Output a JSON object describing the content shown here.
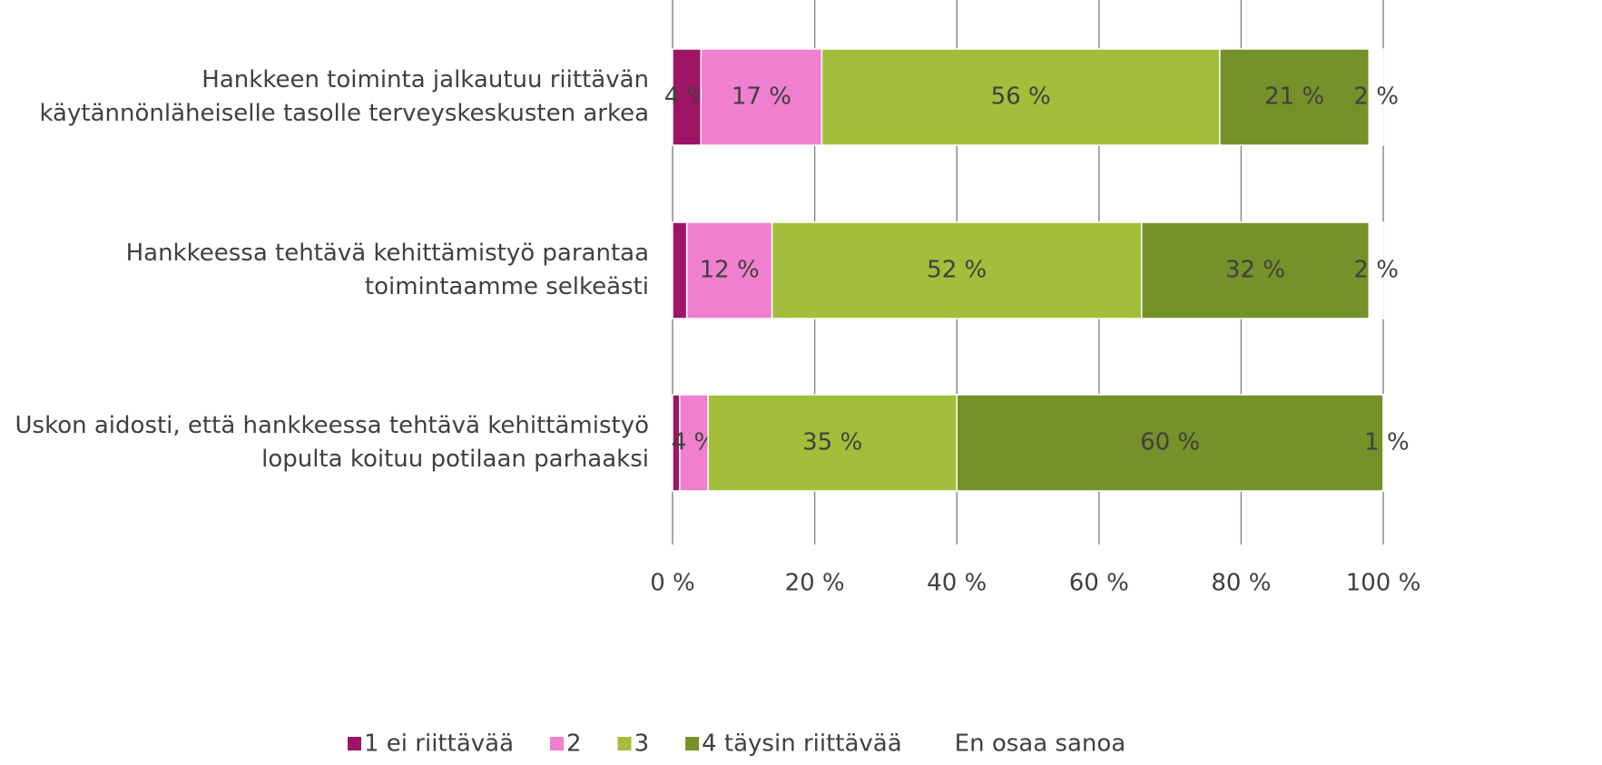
{
  "chart_data": {
    "type": "stacked-barh",
    "categories": [
      "Hankkeen toiminta jalkautuu riittävän\nkäytännönläheiselle tasolle terveyskeskusten arkea",
      "Hankkeessa tehtävä kehittämistyö parantaa\ntoimintaamme selkeästi",
      "Uskon aidosti, että hankkeessa tehtävä kehittämistyö\nlopulta koituu potilaan parhaaksi"
    ],
    "series": [
      {
        "name": "1 ei riittävää",
        "color": "#9e1566",
        "values": [
          4,
          2,
          1
        ],
        "value_labels": [
          "4 %",
          null,
          null
        ]
      },
      {
        "name": "2",
        "color": "#f07fcf",
        "values": [
          17,
          12,
          4
        ],
        "value_labels": [
          "17 %",
          "12 %",
          "4 %"
        ]
      },
      {
        "name": "3",
        "color": "#a2be3a",
        "values": [
          56,
          52,
          35
        ],
        "value_labels": [
          "56 %",
          "52 %",
          "35 %"
        ]
      },
      {
        "name": "4 täysin riittävää",
        "color": "#76902a",
        "values": [
          21,
          32,
          60
        ],
        "value_labels": [
          "21 %",
          "32 %",
          "60 %"
        ]
      },
      {
        "name": "En osaa sanoa",
        "color": "#ffffff",
        "values": [
          2,
          2,
          1
        ],
        "value_labels": [
          "2 %",
          "2 %",
          "1 %"
        ]
      }
    ],
    "xlim": [
      0,
      100
    ],
    "xticks": [
      {
        "value": 0,
        "label": "0 %"
      },
      {
        "value": 20,
        "label": "20 %"
      },
      {
        "value": 40,
        "label": "40 %"
      },
      {
        "value": 60,
        "label": "60 %"
      },
      {
        "value": 80,
        "label": "80 %"
      },
      {
        "value": 100,
        "label": "100 %"
      }
    ],
    "grid": true,
    "legend": "bottom"
  }
}
